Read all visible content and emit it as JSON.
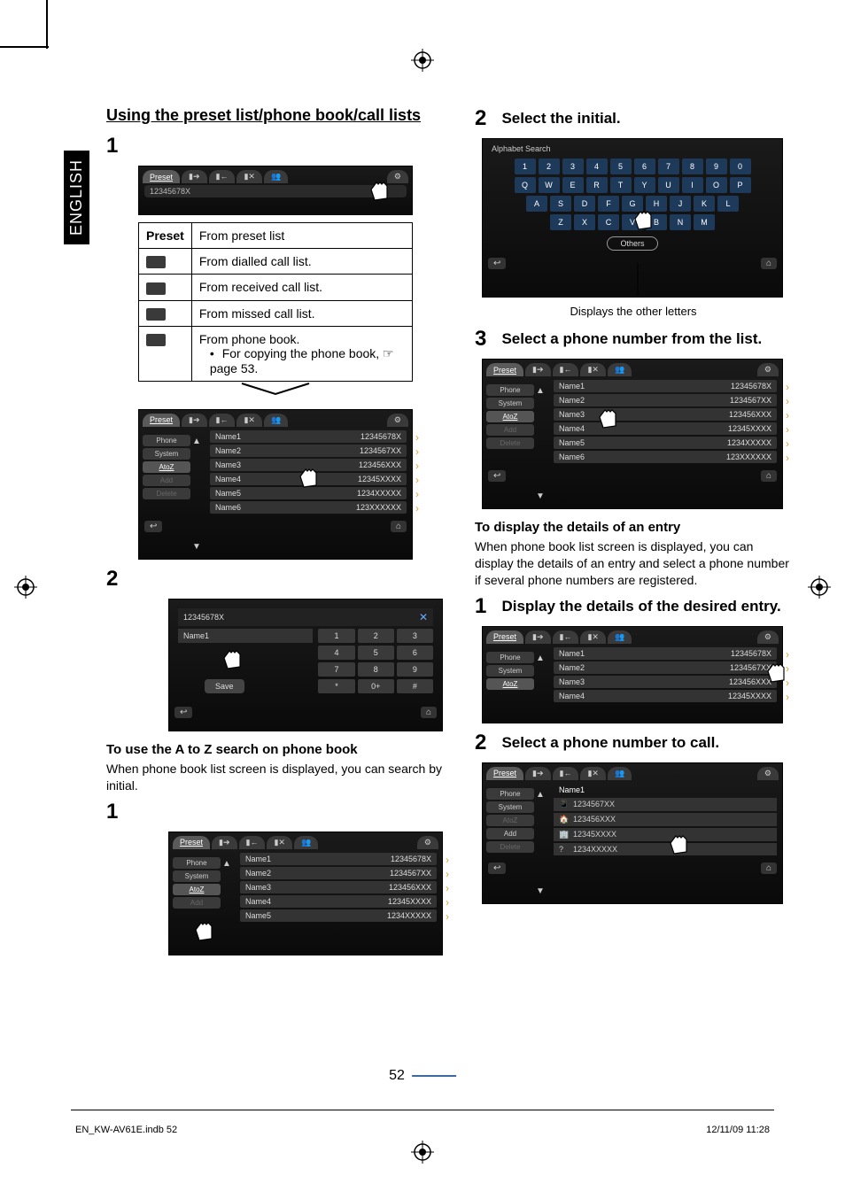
{
  "lang_tab": "ENGLISH",
  "section_title": "Using the preset list/phone book/call lists",
  "steps": {
    "s1": "1",
    "s2": "2",
    "s3": "3"
  },
  "preset_table": {
    "header_key": "Preset",
    "rows": [
      {
        "label": "From preset list"
      },
      {
        "label": "From dialled call list."
      },
      {
        "label": "From received call list."
      },
      {
        "label": "From missed call list."
      },
      {
        "label": "From phone book.",
        "sub": "For copying the phone book, ☞ page 53."
      }
    ]
  },
  "tabs": {
    "preset": "Preset"
  },
  "addr": "12345678X",
  "sidebar": [
    "Phone",
    "System",
    "AtoZ",
    "Add",
    "Delete"
  ],
  "list": [
    {
      "n": "Name1",
      "p": "12345678X"
    },
    {
      "n": "Name2",
      "p": "1234567XX"
    },
    {
      "n": "Name3",
      "p": "123456XXX"
    },
    {
      "n": "Name4",
      "p": "12345XXXX"
    },
    {
      "n": "Name5",
      "p": "1234XXXXX"
    },
    {
      "n": "Name6",
      "p": "123XXXXXX"
    }
  ],
  "keypad": {
    "display": "12345678X",
    "name": "Name1",
    "rows": [
      [
        "1",
        "2",
        "3"
      ],
      [
        "4",
        "5",
        "6"
      ],
      [
        "7",
        "8",
        "9"
      ],
      [
        "*",
        "0+",
        "#"
      ]
    ],
    "save": "Save"
  },
  "atoz": {
    "heading": "To use the A to Z search on phone book",
    "body": "When phone book list screen is displayed, you can search by initial."
  },
  "right": {
    "step2_title": "Select the initial.",
    "alpha_title": "Alphabet Search",
    "row_num": [
      "1",
      "2",
      "3",
      "4",
      "5",
      "6",
      "7",
      "8",
      "9",
      "0"
    ],
    "row_a": [
      "Q",
      "W",
      "E",
      "R",
      "T",
      "Y",
      "U",
      "I",
      "O",
      "P"
    ],
    "row_b": [
      "A",
      "S",
      "D",
      "F",
      "G",
      "H",
      "J",
      "K",
      "L"
    ],
    "row_c": [
      "Z",
      "X",
      "C",
      "V",
      "B",
      "N",
      "M"
    ],
    "others": "Others",
    "caption": "Displays the other letters",
    "step3_title": "Select a phone number from the list.",
    "detail_heading": "To display the details of an entry",
    "detail_body": "When phone book list screen is displayed, you can display the details of an entry and select a phone number if several phone numbers are registered.",
    "step1b_title": "Display the details of the desired entry.",
    "step2b_title": "Select a phone number to call.",
    "detail_name": "Name1",
    "detail_nums": [
      "1234567XX",
      "123456XXX",
      "12345XXXX",
      "1234XXXXX"
    ]
  },
  "page_number": "52",
  "footer_file": "EN_KW-AV61E.indb   52",
  "footer_time": "12/11/09   11:28"
}
